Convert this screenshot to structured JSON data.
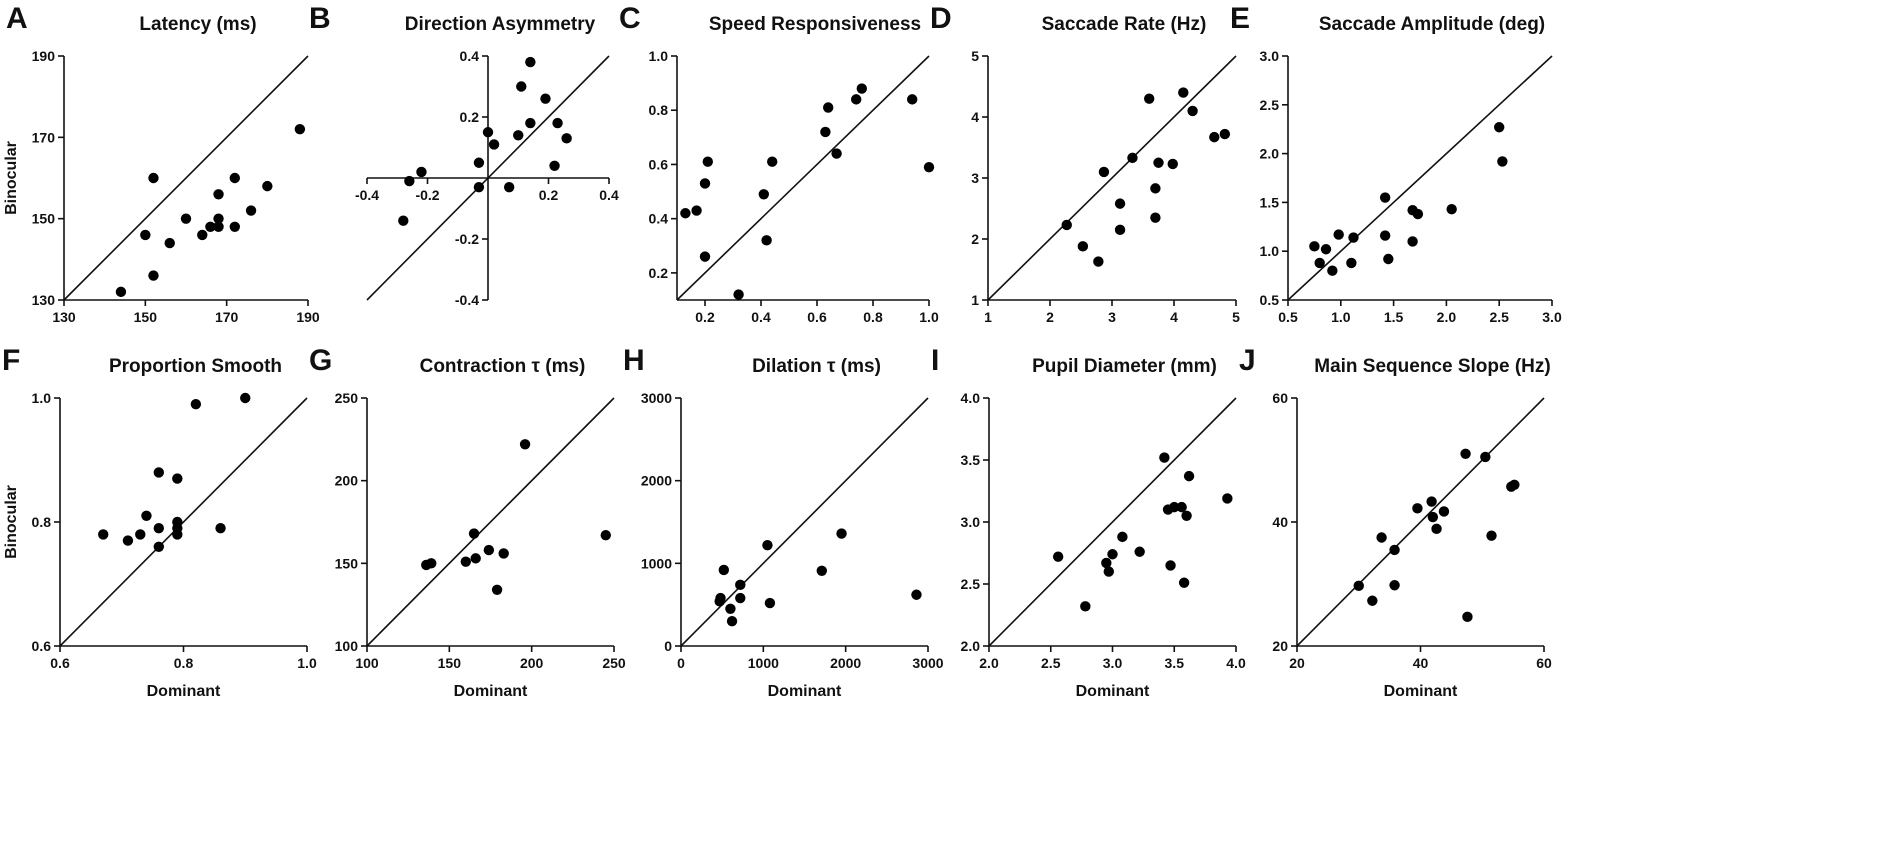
{
  "figure": {
    "shared_xlabel": "Dominant",
    "shared_ylabel": "Binocular"
  },
  "chart_data": [
    {
      "id": "A",
      "type": "scatter",
      "title": "Latency (ms)",
      "letter": "A",
      "xlim": [
        130,
        190
      ],
      "ylim": [
        130,
        190
      ],
      "xticks": [
        130,
        150,
        170,
        190
      ],
      "yticks": [
        130,
        150,
        170,
        190
      ],
      "xtick_labels": [
        "130",
        "150",
        "170",
        "190"
      ],
      "ytick_labels": [
        "130",
        "150",
        "170",
        "190"
      ],
      "ylabel": "Binocular",
      "xlabel": "",
      "axes_style": "box",
      "identity_line": true,
      "points": [
        [
          144,
          132
        ],
        [
          150,
          146
        ],
        [
          152,
          136
        ],
        [
          152,
          160
        ],
        [
          156,
          144
        ],
        [
          160,
          150
        ],
        [
          164,
          146
        ],
        [
          166,
          148
        ],
        [
          168,
          148
        ],
        [
          168,
          150
        ],
        [
          168,
          156
        ],
        [
          172,
          148
        ],
        [
          172,
          160
        ],
        [
          176,
          152
        ],
        [
          180,
          158
        ],
        [
          188,
          172
        ]
      ]
    },
    {
      "id": "B",
      "type": "scatter",
      "title": "Direction Asymmetry",
      "letter": "B",
      "xlim": [
        -0.4,
        0.4
      ],
      "ylim": [
        -0.4,
        0.4
      ],
      "xticks": [
        -0.4,
        -0.2,
        0.2,
        0.4
      ],
      "yticks": [
        -0.4,
        -0.2,
        0.2,
        0.4
      ],
      "xtick_labels": [
        "-0.4",
        "-0.2",
        "0.2",
        "0.4"
      ],
      "ytick_labels": [
        "-0.4",
        "-0.2",
        "0.2",
        "0.4"
      ],
      "ylabel": "",
      "xlabel": "",
      "axes_style": "cross",
      "identity_line": true,
      "points": [
        [
          -0.28,
          -0.14
        ],
        [
          -0.26,
          -0.01
        ],
        [
          -0.22,
          0.02
        ],
        [
          -0.03,
          -0.03
        ],
        [
          -0.03,
          0.05
        ],
        [
          0.0,
          0.15
        ],
        [
          0.02,
          0.11
        ],
        [
          0.07,
          -0.03
        ],
        [
          0.1,
          0.14
        ],
        [
          0.11,
          0.3
        ],
        [
          0.14,
          0.38
        ],
        [
          0.14,
          0.18
        ],
        [
          0.19,
          0.26
        ],
        [
          0.22,
          0.04
        ],
        [
          0.23,
          0.18
        ],
        [
          0.26,
          0.13
        ]
      ]
    },
    {
      "id": "C",
      "type": "scatter",
      "title": "Speed Responsiveness",
      "letter": "C",
      "xlim": [
        0.1,
        1.0
      ],
      "ylim": [
        0.1,
        1.0
      ],
      "xticks": [
        0.2,
        0.4,
        0.6,
        0.8,
        1.0
      ],
      "yticks": [
        0.2,
        0.4,
        0.6,
        0.8,
        1.0
      ],
      "xtick_labels": [
        "0.2",
        "0.4",
        "0.6",
        "0.8",
        "1.0"
      ],
      "ytick_labels": [
        "0.2",
        "0.4",
        "0.6",
        "0.8",
        "1.0"
      ],
      "ylabel": "",
      "xlabel": "",
      "axes_style": "box",
      "identity_line": true,
      "points": [
        [
          0.13,
          0.42
        ],
        [
          0.17,
          0.43
        ],
        [
          0.2,
          0.26
        ],
        [
          0.2,
          0.53
        ],
        [
          0.21,
          0.61
        ],
        [
          0.32,
          0.12
        ],
        [
          0.41,
          0.49
        ],
        [
          0.42,
          0.32
        ],
        [
          0.44,
          0.61
        ],
        [
          0.63,
          0.72
        ],
        [
          0.64,
          0.81
        ],
        [
          0.67,
          0.64
        ],
        [
          0.74,
          0.84
        ],
        [
          0.76,
          0.88
        ],
        [
          0.94,
          0.84
        ],
        [
          1.0,
          0.59
        ]
      ]
    },
    {
      "id": "D",
      "type": "scatter",
      "title": "Saccade Rate  (Hz)",
      "letter": "D",
      "xlim": [
        1,
        5
      ],
      "ylim": [
        1,
        5
      ],
      "xticks": [
        1,
        2,
        3,
        4,
        5
      ],
      "yticks": [
        1,
        2,
        3,
        4,
        5
      ],
      "xtick_labels": [
        "1",
        "2",
        "3",
        "4",
        "5"
      ],
      "ytick_labels": [
        "1",
        "2",
        "3",
        "4",
        "5"
      ],
      "ylabel": "",
      "xlabel": "",
      "axes_style": "box",
      "identity_line": true,
      "points": [
        [
          2.27,
          2.23
        ],
        [
          2.53,
          1.88
        ],
        [
          2.78,
          1.63
        ],
        [
          2.87,
          3.1
        ],
        [
          3.13,
          2.58
        ],
        [
          3.13,
          2.15
        ],
        [
          3.33,
          3.33
        ],
        [
          3.6,
          4.3
        ],
        [
          3.7,
          2.83
        ],
        [
          3.7,
          2.35
        ],
        [
          3.75,
          3.25
        ],
        [
          3.98,
          3.23
        ],
        [
          4.15,
          4.4
        ],
        [
          4.3,
          4.1
        ],
        [
          4.65,
          3.67
        ],
        [
          4.82,
          3.72
        ]
      ]
    },
    {
      "id": "E",
      "type": "scatter",
      "title": "Saccade Amplitude (deg)",
      "letter": "E",
      "xlim": [
        0.5,
        3.0
      ],
      "ylim": [
        0.5,
        3.0
      ],
      "xticks": [
        0.5,
        1.0,
        1.5,
        2.0,
        2.5,
        3.0
      ],
      "yticks": [
        0.5,
        1.0,
        1.5,
        2.0,
        2.5,
        3.0
      ],
      "xtick_labels": [
        "0.5",
        "1.0",
        "1.5",
        "2.0",
        "2.5",
        "3.0"
      ],
      "ytick_labels": [
        "0.5",
        "1.0",
        "1.5",
        "2.0",
        "2.5",
        "3.0"
      ],
      "ylabel": "",
      "xlabel": "",
      "axes_style": "box",
      "identity_line": true,
      "points": [
        [
          0.75,
          1.05
        ],
        [
          0.8,
          0.88
        ],
        [
          0.86,
          1.02
        ],
        [
          0.92,
          0.8
        ],
        [
          0.98,
          1.17
        ],
        [
          1.1,
          0.88
        ],
        [
          1.12,
          1.14
        ],
        [
          1.42,
          1.55
        ],
        [
          1.42,
          1.16
        ],
        [
          1.45,
          0.92
        ],
        [
          1.68,
          1.42
        ],
        [
          1.68,
          1.1
        ],
        [
          1.73,
          1.38
        ],
        [
          2.05,
          1.43
        ],
        [
          2.5,
          2.27
        ],
        [
          2.53,
          1.92
        ]
      ]
    },
    {
      "id": "F",
      "type": "scatter",
      "title": "Proportion Smooth",
      "letter": "F",
      "xlim": [
        0.6,
        1.0
      ],
      "ylim": [
        0.6,
        1.0
      ],
      "xticks": [
        0.6,
        0.8,
        1.0
      ],
      "yticks": [
        0.6,
        0.8,
        1.0
      ],
      "xtick_labels": [
        "0.6",
        "0.8",
        "1.0"
      ],
      "ytick_labels": [
        "0.6",
        "0.8",
        "1.0"
      ],
      "ylabel": "Binocular",
      "xlabel": "Dominant",
      "axes_style": "box",
      "identity_line": true,
      "points": [
        [
          0.67,
          0.78
        ],
        [
          0.71,
          0.77
        ],
        [
          0.73,
          0.78
        ],
        [
          0.74,
          0.81
        ],
        [
          0.76,
          0.76
        ],
        [
          0.76,
          0.79
        ],
        [
          0.76,
          0.88
        ],
        [
          0.79,
          0.78
        ],
        [
          0.79,
          0.79
        ],
        [
          0.79,
          0.8
        ],
        [
          0.79,
          0.87
        ],
        [
          0.82,
          0.99
        ],
        [
          0.86,
          0.79
        ],
        [
          0.9,
          1.0
        ]
      ]
    },
    {
      "id": "G",
      "type": "scatter",
      "title": "Contraction τ (ms)",
      "letter": "G",
      "xlim": [
        100,
        250
      ],
      "ylim": [
        100,
        250
      ],
      "xticks": [
        100,
        150,
        200,
        250
      ],
      "yticks": [
        100,
        150,
        200,
        250
      ],
      "xtick_labels": [
        "100",
        "150",
        "200",
        "250"
      ],
      "ytick_labels": [
        "100",
        "150",
        "200",
        "250"
      ],
      "ylabel": "",
      "xlabel": "Dominant",
      "axes_style": "box",
      "identity_line": true,
      "points": [
        [
          136,
          149
        ],
        [
          139,
          150
        ],
        [
          160,
          151
        ],
        [
          165,
          168
        ],
        [
          166,
          153
        ],
        [
          174,
          158
        ],
        [
          179,
          134
        ],
        [
          183,
          156
        ],
        [
          196,
          222
        ],
        [
          245,
          167
        ]
      ]
    },
    {
      "id": "H",
      "type": "scatter",
      "title": "Dilation τ (ms)",
      "letter": "H",
      "xlim": [
        0,
        3000
      ],
      "ylim": [
        0,
        3000
      ],
      "xticks": [
        0,
        1000,
        2000,
        3000
      ],
      "yticks": [
        0,
        1000,
        2000,
        3000
      ],
      "xtick_labels": [
        "0",
        "1000",
        "2000",
        "3000"
      ],
      "ytick_labels": [
        "0",
        "1000",
        "2000",
        "3000"
      ],
      "ylabel": "",
      "xlabel": "Dominant",
      "axes_style": "box",
      "identity_line": true,
      "points": [
        [
          470,
          540
        ],
        [
          480,
          580
        ],
        [
          520,
          920
        ],
        [
          600,
          450
        ],
        [
          620,
          300
        ],
        [
          720,
          580
        ],
        [
          720,
          740
        ],
        [
          1050,
          1220
        ],
        [
          1080,
          520
        ],
        [
          1710,
          910
        ],
        [
          1950,
          1360
        ],
        [
          2860,
          620
        ]
      ]
    },
    {
      "id": "I",
      "type": "scatter",
      "title": "Pupil Diameter (mm)",
      "letter": "I",
      "xlim": [
        2.0,
        4.0
      ],
      "ylim": [
        2.0,
        4.0
      ],
      "xticks": [
        2.0,
        2.5,
        3.0,
        3.5,
        4.0
      ],
      "yticks": [
        2.0,
        2.5,
        3.0,
        3.5,
        4.0
      ],
      "xtick_labels": [
        "2.0",
        "2.5",
        "3.0",
        "3.5",
        "4.0"
      ],
      "ytick_labels": [
        "2.0",
        "2.5",
        "3.0",
        "3.5",
        "4.0"
      ],
      "ylabel": "",
      "xlabel": "Dominant",
      "axes_style": "box",
      "identity_line": true,
      "points": [
        [
          2.56,
          2.72
        ],
        [
          2.78,
          2.32
        ],
        [
          2.95,
          2.67
        ],
        [
          2.97,
          2.6
        ],
        [
          3.0,
          2.74
        ],
        [
          3.08,
          2.88
        ],
        [
          3.22,
          2.76
        ],
        [
          3.42,
          3.52
        ],
        [
          3.45,
          3.1
        ],
        [
          3.47,
          2.65
        ],
        [
          3.5,
          3.12
        ],
        [
          3.56,
          3.12
        ],
        [
          3.58,
          2.51
        ],
        [
          3.6,
          3.05
        ],
        [
          3.62,
          3.37
        ],
        [
          3.93,
          3.19
        ]
      ]
    },
    {
      "id": "J",
      "type": "scatter",
      "title": "Main Sequence Slope (Hz)",
      "letter": "J",
      "xlim": [
        20,
        60
      ],
      "ylim": [
        20,
        60
      ],
      "xticks": [
        20,
        40,
        60
      ],
      "yticks": [
        20,
        40,
        60
      ],
      "xtick_labels": [
        "20",
        "40",
        "60"
      ],
      "ytick_labels": [
        "20",
        "40",
        "60"
      ],
      "ylabel": "",
      "xlabel": "Dominant",
      "axes_style": "box",
      "identity_line": true,
      "points": [
        [
          30,
          29.7
        ],
        [
          32.2,
          27.3
        ],
        [
          33.7,
          37.5
        ],
        [
          35.8,
          35.5
        ],
        [
          35.8,
          29.8
        ],
        [
          39.5,
          42.2
        ],
        [
          41.8,
          43.3
        ],
        [
          42,
          40.8
        ],
        [
          42.6,
          38.9
        ],
        [
          43.8,
          41.7
        ],
        [
          47.3,
          51
        ],
        [
          47.6,
          24.7
        ],
        [
          50.5,
          50.5
        ],
        [
          51.5,
          37.8
        ],
        [
          54.7,
          45.7
        ],
        [
          55.2,
          46
        ]
      ]
    }
  ]
}
